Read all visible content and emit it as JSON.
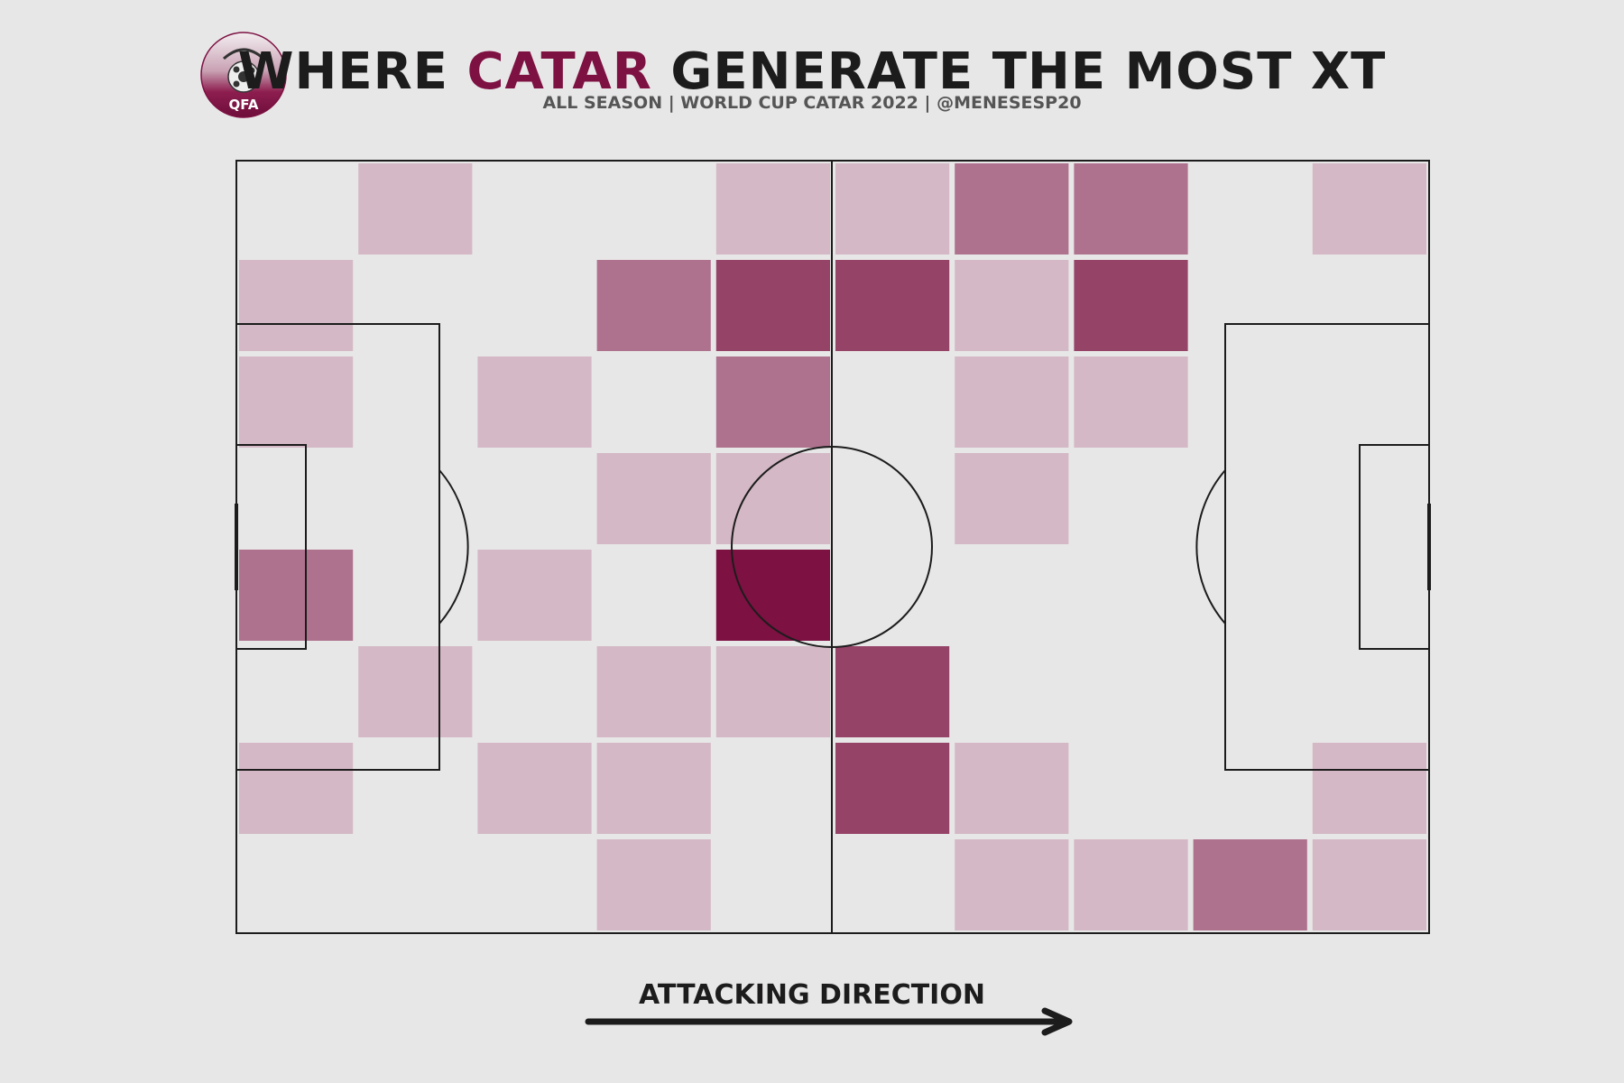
{
  "header": {
    "title_prefix": "WHERE ",
    "title_highlight": "CATAR",
    "title_suffix": " GENERATE THE MOST XT",
    "subtitle": "ALL SEASON | WORLD CUP CATAR 2022 | @MENESESP20",
    "logo_text": "QFA"
  },
  "footer": {
    "direction_label": "ATTACKING DIRECTION"
  },
  "colors": {
    "background": "#e8e7e7",
    "accent": "#7d1142",
    "lines": "#1c1c1c"
  },
  "chart_data": {
    "type": "heatmap",
    "description_levels": "0 = none, 1 = low, 2 = medium, 3 = high, 4 = highest",
    "columns": 10,
    "rows": 8,
    "orientation": "attacking left to right",
    "grid": [
      [
        0,
        1,
        0,
        0,
        1,
        1,
        2,
        2,
        0,
        1
      ],
      [
        1,
        0,
        0,
        2,
        3,
        3,
        1,
        3,
        0,
        0
      ],
      [
        1,
        0,
        1,
        0,
        2,
        0,
        1,
        1,
        0,
        0
      ],
      [
        0,
        0,
        0,
        1,
        1,
        0,
        1,
        0,
        0,
        0
      ],
      [
        2,
        0,
        1,
        0,
        4,
        0,
        0,
        0,
        0,
        0
      ],
      [
        0,
        1,
        0,
        1,
        1,
        3,
        0,
        0,
        0,
        0
      ],
      [
        1,
        0,
        1,
        1,
        0,
        3,
        1,
        0,
        0,
        1
      ],
      [
        0,
        0,
        0,
        1,
        0,
        0,
        1,
        1,
        2,
        1
      ]
    ],
    "level_colors": [
      "transparent",
      "#d4b8c5",
      "#ae728e",
      "#964368",
      "#7d1142"
    ]
  }
}
